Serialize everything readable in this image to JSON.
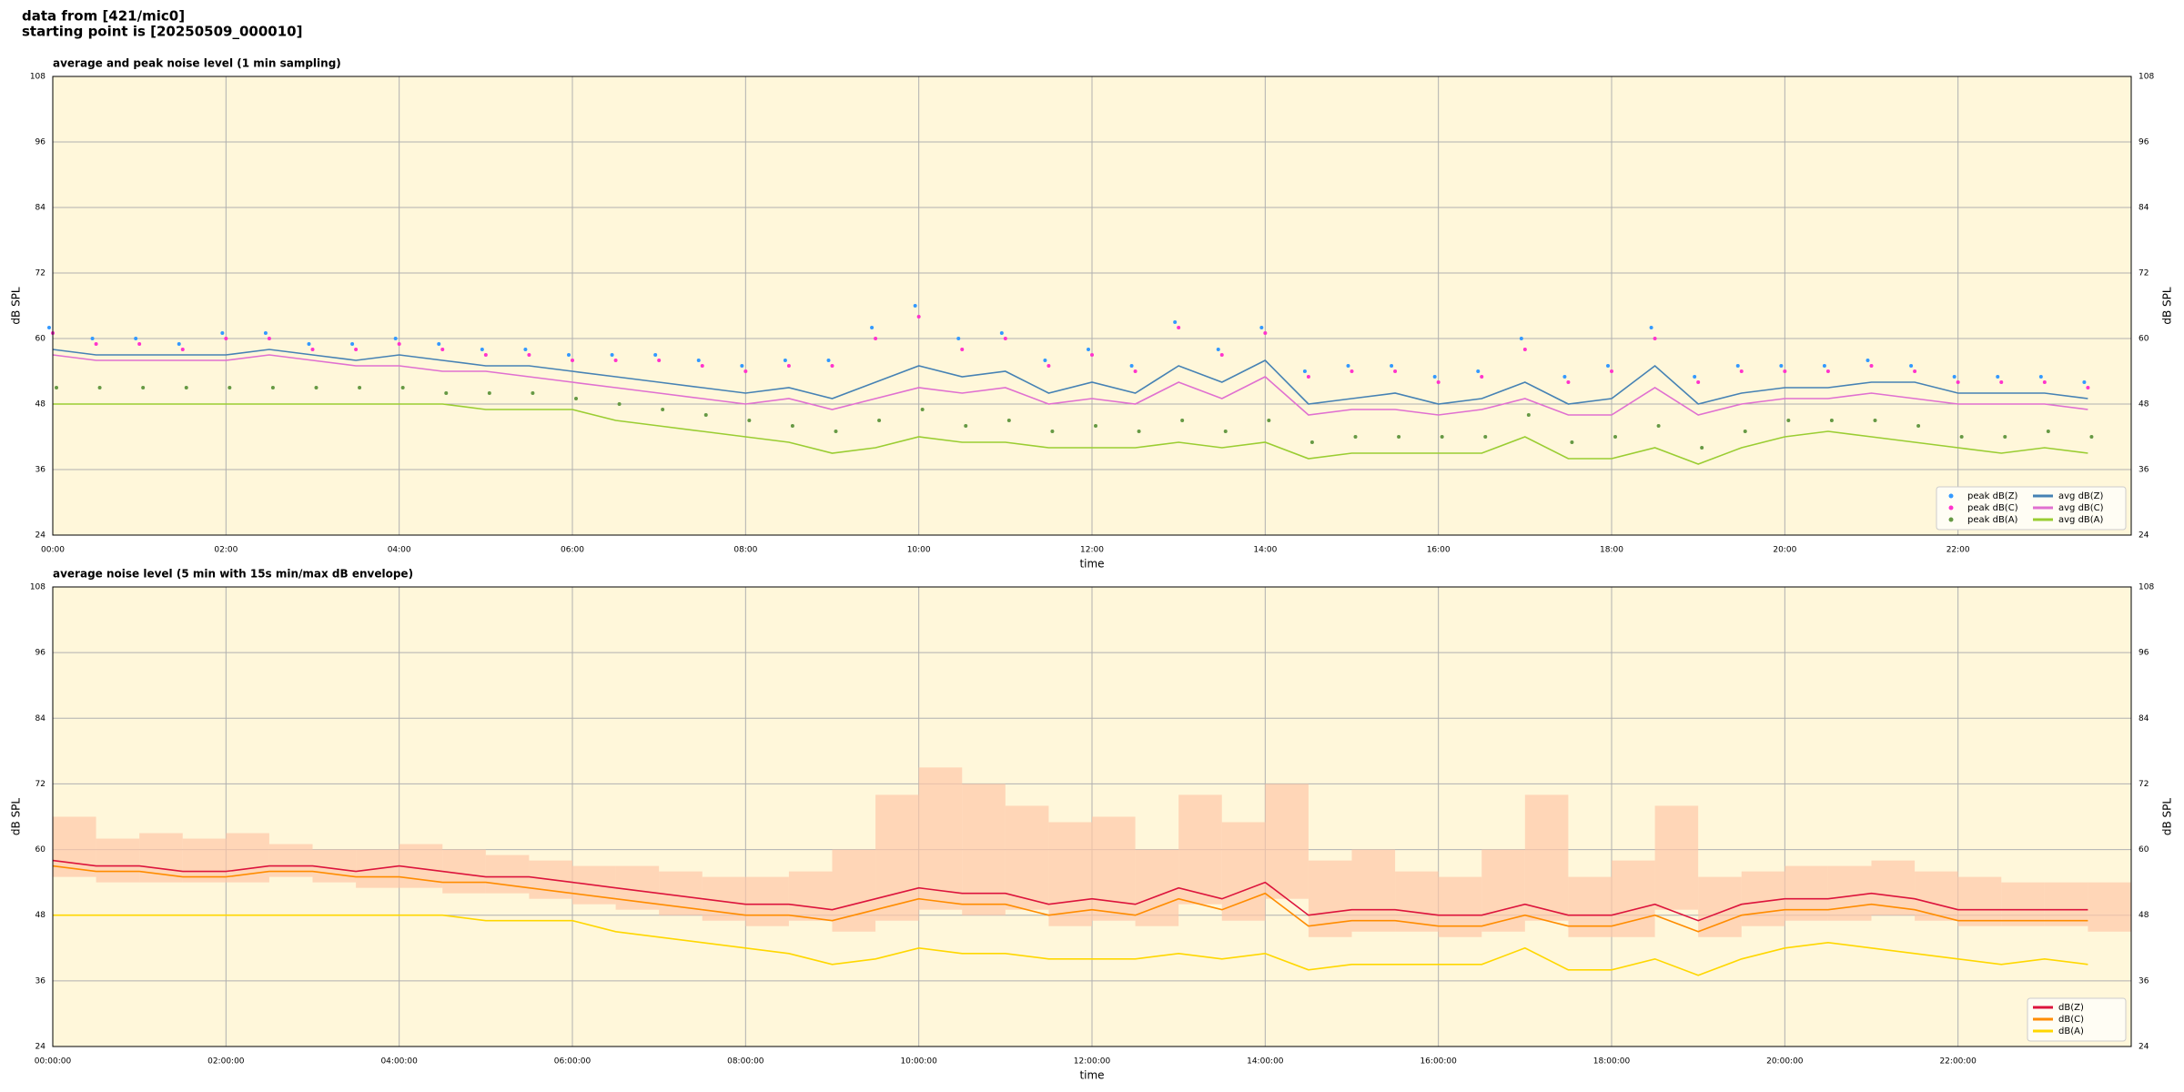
{
  "header": {
    "line1": "data from [421/mic0]",
    "line2": "starting point is [20250509_000010]"
  },
  "chart_data": [
    {
      "type": "line",
      "title": "average and peak noise level (1 min sampling)",
      "xlabel": "time",
      "ylabel": "dB SPL",
      "xlim": [
        0,
        24
      ],
      "ylim": [
        24,
        108
      ],
      "yticks": [
        24,
        36,
        48,
        60,
        72,
        84,
        96,
        108
      ],
      "xticks": [
        {
          "value": 0,
          "label": "00:00"
        },
        {
          "value": 2,
          "label": "02:00"
        },
        {
          "value": 4,
          "label": "04:00"
        },
        {
          "value": 6,
          "label": "06:00"
        },
        {
          "value": 8,
          "label": "08:00"
        },
        {
          "value": 10,
          "label": "10:00"
        },
        {
          "value": 12,
          "label": "12:00"
        },
        {
          "value": 14,
          "label": "14:00"
        },
        {
          "value": 16,
          "label": "16:00"
        },
        {
          "value": 18,
          "label": "18:00"
        },
        {
          "value": 20,
          "label": "20:00"
        },
        {
          "value": 22,
          "label": "22:00"
        }
      ],
      "grid": true,
      "legend": "lower right",
      "legend_columns": 2,
      "x": [
        0,
        0.5,
        1,
        1.5,
        2,
        2.5,
        3,
        3.5,
        4,
        4.5,
        5,
        5.5,
        6,
        6.5,
        7,
        7.5,
        8,
        8.5,
        9,
        9.5,
        10,
        10.5,
        11,
        11.5,
        12,
        12.5,
        13,
        13.5,
        14,
        14.5,
        15,
        15.5,
        16,
        16.5,
        17,
        17.5,
        18,
        18.5,
        19,
        19.5,
        20,
        20.5,
        21,
        21.5,
        22,
        22.5,
        23,
        23.5
      ],
      "series": [
        {
          "name": "peak dB(Z)",
          "marker": "dot",
          "color": "#3399ff",
          "values": [
            62,
            60,
            60,
            59,
            61,
            61,
            59,
            59,
            60,
            59,
            58,
            58,
            57,
            57,
            57,
            56,
            55,
            56,
            56,
            62,
            66,
            60,
            61,
            56,
            58,
            55,
            63,
            58,
            62,
            54,
            55,
            55,
            53,
            54,
            60,
            53,
            55,
            62,
            53,
            55,
            55,
            55,
            56,
            55,
            53,
            53,
            53,
            52
          ]
        },
        {
          "name": "peak dB(C)",
          "marker": "dot",
          "color": "#ff33cc",
          "values": [
            61,
            59,
            59,
            58,
            60,
            60,
            58,
            58,
            59,
            58,
            57,
            57,
            56,
            56,
            56,
            55,
            54,
            55,
            55,
            60,
            64,
            58,
            60,
            55,
            57,
            54,
            62,
            57,
            61,
            53,
            54,
            54,
            52,
            53,
            58,
            52,
            54,
            60,
            52,
            54,
            54,
            54,
            55,
            54,
            52,
            52,
            52,
            51
          ]
        },
        {
          "name": "peak dB(A)",
          "marker": "dot",
          "color": "#669944",
          "values": [
            51,
            51,
            51,
            51,
            51,
            51,
            51,
            51,
            51,
            50,
            50,
            50,
            49,
            48,
            47,
            46,
            45,
            44,
            43,
            45,
            47,
            44,
            45,
            43,
            44,
            43,
            45,
            43,
            45,
            41,
            42,
            42,
            42,
            42,
            46,
            41,
            42,
            44,
            40,
            43,
            45,
            45,
            45,
            44,
            42,
            42,
            43,
            42
          ]
        },
        {
          "name": "avg dB(Z)",
          "marker": "line",
          "color": "#4682b4",
          "values": [
            58,
            57,
            57,
            57,
            57,
            58,
            57,
            56,
            57,
            56,
            55,
            55,
            54,
            53,
            52,
            51,
            50,
            51,
            49,
            52,
            55,
            53,
            54,
            50,
            52,
            50,
            55,
            52,
            56,
            48,
            49,
            50,
            48,
            49,
            52,
            48,
            49,
            55,
            48,
            50,
            51,
            51,
            52,
            52,
            50,
            50,
            50,
            49
          ]
        },
        {
          "name": "avg dB(C)",
          "marker": "line",
          "color": "#e070d0",
          "values": [
            57,
            56,
            56,
            56,
            56,
            57,
            56,
            55,
            55,
            54,
            54,
            53,
            52,
            51,
            50,
            49,
            48,
            49,
            47,
            49,
            51,
            50,
            51,
            48,
            49,
            48,
            52,
            49,
            53,
            46,
            47,
            47,
            46,
            47,
            49,
            46,
            46,
            51,
            46,
            48,
            49,
            49,
            50,
            49,
            48,
            48,
            48,
            47
          ]
        },
        {
          "name": "avg dB(A)",
          "marker": "line",
          "color": "#9acd32",
          "values": [
            48,
            48,
            48,
            48,
            48,
            48,
            48,
            48,
            48,
            48,
            47,
            47,
            47,
            45,
            44,
            43,
            42,
            41,
            39,
            40,
            42,
            41,
            41,
            40,
            40,
            40,
            41,
            40,
            41,
            38,
            39,
            39,
            39,
            39,
            42,
            38,
            38,
            40,
            37,
            40,
            42,
            43,
            42,
            41,
            40,
            39,
            40,
            39
          ]
        }
      ]
    },
    {
      "type": "line",
      "title": "average noise level (5 min with 15s min/max dB envelope)",
      "xlabel": "time",
      "ylabel": "dB SPL",
      "xlim": [
        0,
        24
      ],
      "ylim": [
        24,
        108
      ],
      "yticks": [
        24,
        36,
        48,
        60,
        72,
        84,
        96,
        108
      ],
      "xticks": [
        {
          "value": 0,
          "label": "00:00:00"
        },
        {
          "value": 2,
          "label": "02:00:00"
        },
        {
          "value": 4,
          "label": "04:00:00"
        },
        {
          "value": 6,
          "label": "06:00:00"
        },
        {
          "value": 8,
          "label": "08:00:00"
        },
        {
          "value": 10,
          "label": "10:00:00"
        },
        {
          "value": 12,
          "label": "12:00:00"
        },
        {
          "value": 14,
          "label": "14:00:00"
        },
        {
          "value": 16,
          "label": "16:00:00"
        },
        {
          "value": 18,
          "label": "18:00:00"
        },
        {
          "value": 20,
          "label": "20:00:00"
        },
        {
          "value": 22,
          "label": "22:00:00"
        }
      ],
      "grid": true,
      "legend": "lower right",
      "legend_columns": 1,
      "x": [
        0,
        0.5,
        1,
        1.5,
        2,
        2.5,
        3,
        3.5,
        4,
        4.5,
        5,
        5.5,
        6,
        6.5,
        7,
        7.5,
        8,
        8.5,
        9,
        9.5,
        10,
        10.5,
        11,
        11.5,
        12,
        12.5,
        13,
        13.5,
        14,
        14.5,
        15,
        15.5,
        16,
        16.5,
        17,
        17.5,
        18,
        18.5,
        19,
        19.5,
        20,
        20.5,
        21,
        21.5,
        22,
        22.5,
        23,
        23.5
      ],
      "envelope": {
        "color": "#ffc8a8",
        "upper": [
          66,
          62,
          63,
          62,
          63,
          61,
          60,
          60,
          61,
          60,
          59,
          58,
          57,
          57,
          56,
          55,
          55,
          56,
          60,
          70,
          75,
          72,
          68,
          65,
          66,
          60,
          70,
          65,
          72,
          58,
          60,
          56,
          55,
          60,
          70,
          55,
          58,
          68,
          55,
          56,
          57,
          57,
          58,
          56,
          55,
          54,
          54,
          54
        ],
        "lower": [
          55,
          54,
          54,
          54,
          54,
          55,
          54,
          53,
          53,
          52,
          52,
          51,
          50,
          49,
          48,
          47,
          46,
          47,
          45,
          47,
          49,
          48,
          49,
          46,
          47,
          46,
          50,
          47,
          51,
          44,
          45,
          45,
          44,
          45,
          47,
          44,
          44,
          49,
          44,
          46,
          47,
          47,
          48,
          47,
          46,
          46,
          46,
          45
        ]
      },
      "series": [
        {
          "name": "dB(Z)",
          "marker": "line",
          "color": "#dc143c",
          "values": [
            58,
            57,
            57,
            56,
            56,
            57,
            57,
            56,
            57,
            56,
            55,
            55,
            54,
            53,
            52,
            51,
            50,
            50,
            49,
            51,
            53,
            52,
            52,
            50,
            51,
            50,
            53,
            51,
            54,
            48,
            49,
            49,
            48,
            48,
            50,
            48,
            48,
            50,
            47,
            50,
            51,
            51,
            52,
            51,
            49,
            49,
            49,
            49
          ]
        },
        {
          "name": "dB(C)",
          "marker": "line",
          "color": "#ff8c00",
          "values": [
            57,
            56,
            56,
            55,
            55,
            56,
            56,
            55,
            55,
            54,
            54,
            53,
            52,
            51,
            50,
            49,
            48,
            48,
            47,
            49,
            51,
            50,
            50,
            48,
            49,
            48,
            51,
            49,
            52,
            46,
            47,
            47,
            46,
            46,
            48,
            46,
            46,
            48,
            45,
            48,
            49,
            49,
            50,
            49,
            47,
            47,
            47,
            47
          ]
        },
        {
          "name": "dB(A)",
          "marker": "line",
          "color": "#ffd700",
          "values": [
            48,
            48,
            48,
            48,
            48,
            48,
            48,
            48,
            48,
            48,
            47,
            47,
            47,
            45,
            44,
            43,
            42,
            41,
            39,
            40,
            42,
            41,
            41,
            40,
            40,
            40,
            41,
            40,
            41,
            38,
            39,
            39,
            39,
            39,
            42,
            38,
            38,
            40,
            37,
            40,
            42,
            43,
            42,
            41,
            40,
            39,
            40,
            39
          ]
        }
      ]
    }
  ]
}
